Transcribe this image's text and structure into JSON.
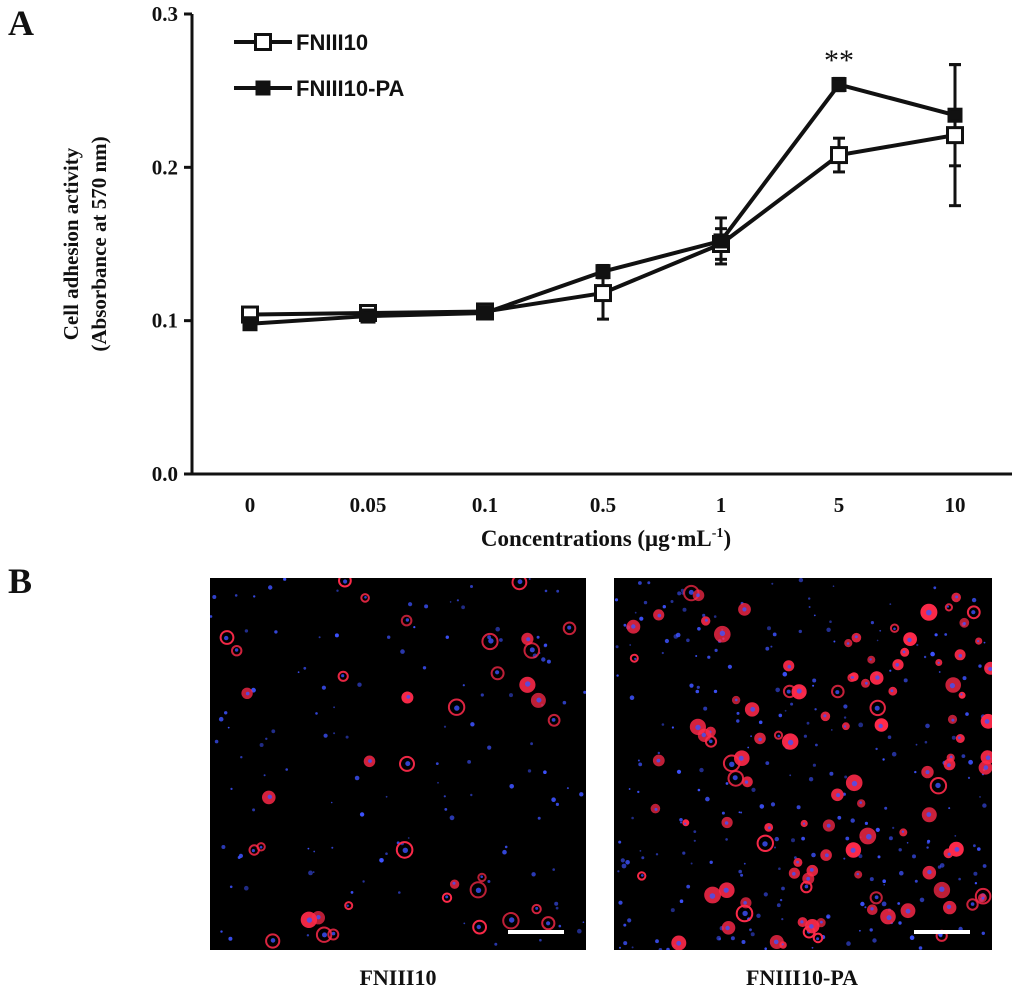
{
  "panels": {
    "a_label": "A",
    "b_label": "B"
  },
  "chart_data": {
    "type": "line",
    "categories": [
      "0",
      "0.05",
      "0.1",
      "0.5",
      "1",
      "5",
      "10"
    ],
    "xlabel": "Concentrations (μg·mL⁻¹)",
    "ylabel_line1": "Cell adhesion activity",
    "ylabel_line2": "(Absorbance at 570 nm)",
    "ylim": [
      0.0,
      0.3
    ],
    "yticks": [
      "0.0",
      "0.1",
      "0.2",
      "0.3"
    ],
    "ytick_values": [
      0.0,
      0.1,
      0.2,
      0.3
    ],
    "grid": false,
    "legend_position": "top-left",
    "annotation": "**",
    "annotation_category": "5",
    "series": [
      {
        "name": "FNIII10",
        "marker": "open-square",
        "values": [
          0.104,
          0.105,
          0.106,
          0.118,
          0.15,
          0.208,
          0.221
        ],
        "errors": [
          0.003,
          0.003,
          0.003,
          0.017,
          0.01,
          0.011,
          0.046
        ]
      },
      {
        "name": "FNIII10-PA",
        "marker": "filled-square",
        "values": [
          0.098,
          0.103,
          0.105,
          0.132,
          0.152,
          0.254,
          0.234
        ],
        "errors": [
          0.003,
          0.003,
          0.003,
          0.004,
          0.015,
          0.004,
          0.033
        ]
      }
    ]
  },
  "images": {
    "left_caption": "FNIII10",
    "right_caption": "FNIII10-PA"
  },
  "colors": {
    "line": "#111111",
    "cell_red": "#ff2a4a",
    "nucleus_blue": "#3d52ff",
    "background": "#000000"
  }
}
